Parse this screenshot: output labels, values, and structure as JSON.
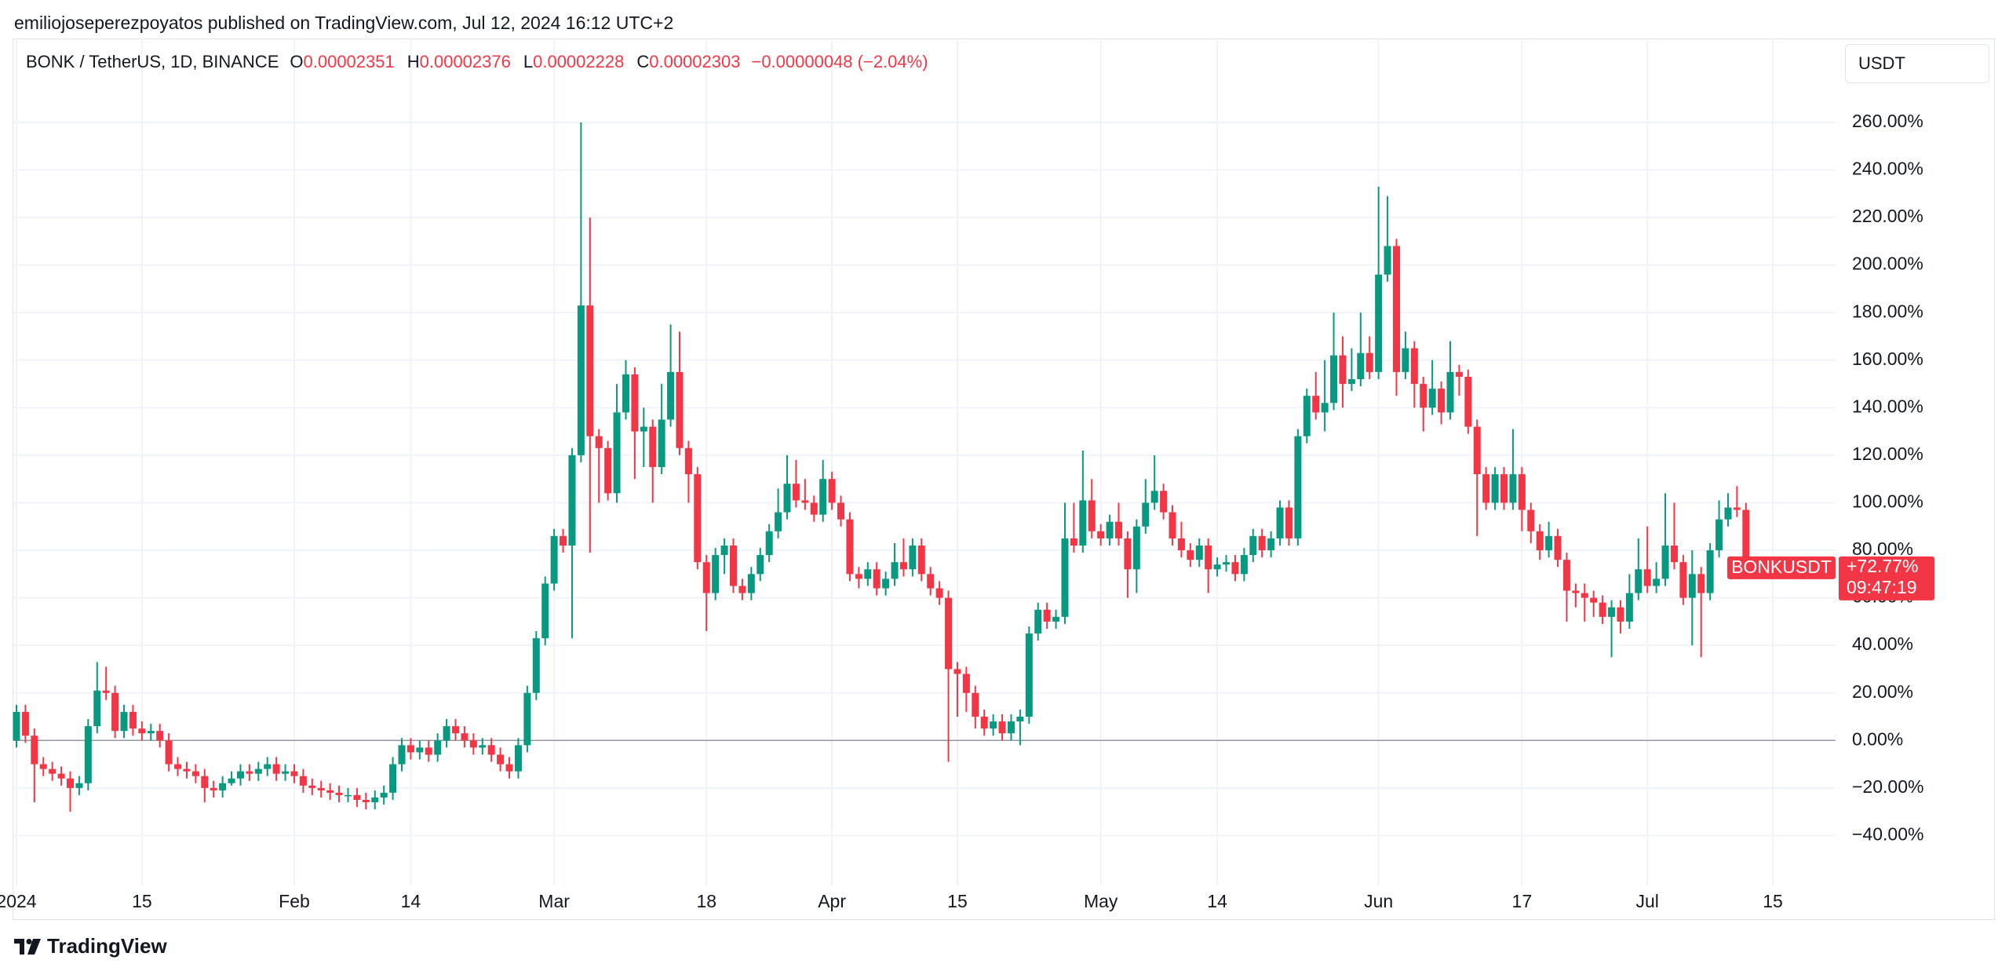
{
  "header": {
    "publisher": "emiliojoseperezpoyatos published on TradingView.com, Jul 12, 2024 16:12 UTC+2",
    "brand": "TradingView"
  },
  "chart_data": {
    "type": "candlestick",
    "symbol": "BONK / TetherUS, 1D, BINANCE",
    "ohlc_legend": [
      {
        "label": "O",
        "value": 2.351e-05
      },
      {
        "label": "H",
        "value": 2.376e-05
      },
      {
        "label": "L",
        "value": 2.228e-05
      },
      {
        "label": "C",
        "value": 2.303e-05
      }
    ],
    "change": "−0.00000048 (−2.04%)",
    "currency": "USDT",
    "up_color": "#089981",
    "down_color": "#f23645",
    "grid": true,
    "x": [
      "2024-01-01",
      "2024-01-02",
      "2024-01-03",
      "2024-01-04",
      "2024-01-05",
      "2024-01-06",
      "2024-01-07",
      "2024-01-08",
      "2024-01-09",
      "2024-01-10",
      "2024-01-11",
      "2024-01-12",
      "2024-01-13",
      "2024-01-14",
      "2024-01-15",
      "2024-01-16",
      "2024-01-17",
      "2024-01-18",
      "2024-01-19",
      "2024-01-20",
      "2024-01-21",
      "2024-01-22",
      "2024-01-23",
      "2024-01-24",
      "2024-01-25",
      "2024-01-26",
      "2024-01-27",
      "2024-01-28",
      "2024-01-29",
      "2024-01-30",
      "2024-01-31",
      "2024-02-01",
      "2024-02-02",
      "2024-02-03",
      "2024-02-04",
      "2024-02-05",
      "2024-02-06",
      "2024-02-07",
      "2024-02-08",
      "2024-02-09",
      "2024-02-10",
      "2024-02-11",
      "2024-02-12",
      "2024-02-13",
      "2024-02-14",
      "2024-02-15",
      "2024-02-16",
      "2024-02-17",
      "2024-02-18",
      "2024-02-19",
      "2024-02-20",
      "2024-02-21",
      "2024-02-22",
      "2024-02-23",
      "2024-02-24",
      "2024-02-25",
      "2024-02-26",
      "2024-02-27",
      "2024-02-28",
      "2024-02-29",
      "2024-03-01",
      "2024-03-02",
      "2024-03-03",
      "2024-03-04",
      "2024-03-05",
      "2024-03-06",
      "2024-03-07",
      "2024-03-08",
      "2024-03-09",
      "2024-03-10",
      "2024-03-11",
      "2024-03-12",
      "2024-03-13",
      "2024-03-14",
      "2024-03-15",
      "2024-03-16",
      "2024-03-17",
      "2024-03-18",
      "2024-03-19",
      "2024-03-20",
      "2024-03-21",
      "2024-03-22",
      "2024-03-23",
      "2024-03-24",
      "2024-03-25",
      "2024-03-26",
      "2024-03-27",
      "2024-03-28",
      "2024-03-29",
      "2024-03-30",
      "2024-03-31",
      "2024-04-01",
      "2024-04-02",
      "2024-04-03",
      "2024-04-04",
      "2024-04-05",
      "2024-04-06",
      "2024-04-07",
      "2024-04-08",
      "2024-04-09",
      "2024-04-10",
      "2024-04-11",
      "2024-04-12",
      "2024-04-13",
      "2024-04-14",
      "2024-04-15",
      "2024-04-16",
      "2024-04-17",
      "2024-04-18",
      "2024-04-19",
      "2024-04-20",
      "2024-04-21",
      "2024-04-22",
      "2024-04-23",
      "2024-04-24",
      "2024-04-25",
      "2024-04-26",
      "2024-04-27",
      "2024-04-28",
      "2024-04-29",
      "2024-04-30",
      "2024-05-01",
      "2024-05-02",
      "2024-05-03",
      "2024-05-04",
      "2024-05-05",
      "2024-05-06",
      "2024-05-07",
      "2024-05-08",
      "2024-05-09",
      "2024-05-10",
      "2024-05-11",
      "2024-05-12",
      "2024-05-13",
      "2024-05-14",
      "2024-05-15",
      "2024-05-16",
      "2024-05-17",
      "2024-05-18",
      "2024-05-19",
      "2024-05-20",
      "2024-05-21",
      "2024-05-22",
      "2024-05-23",
      "2024-05-24",
      "2024-05-25",
      "2024-05-26",
      "2024-05-27",
      "2024-05-28",
      "2024-05-29",
      "2024-05-30",
      "2024-05-31",
      "2024-06-01",
      "2024-06-02",
      "2024-06-03",
      "2024-06-04",
      "2024-06-05",
      "2024-06-06",
      "2024-06-07",
      "2024-06-08",
      "2024-06-09",
      "2024-06-10",
      "2024-06-11",
      "2024-06-12",
      "2024-06-13",
      "2024-06-14",
      "2024-06-15",
      "2024-06-16",
      "2024-06-17",
      "2024-06-18",
      "2024-06-19",
      "2024-06-20",
      "2024-06-21",
      "2024-06-22",
      "2024-06-23",
      "2024-06-24",
      "2024-06-25",
      "2024-06-26",
      "2024-06-27",
      "2024-06-28",
      "2024-06-29",
      "2024-06-30",
      "2024-07-01",
      "2024-07-02",
      "2024-07-03",
      "2024-07-04",
      "2024-07-05",
      "2024-07-06",
      "2024-07-07",
      "2024-07-08",
      "2024-07-09",
      "2024-07-10",
      "2024-07-11",
      "2024-07-12"
    ],
    "open": [
      0,
      12,
      2,
      -10,
      -12,
      -14,
      -16,
      -20,
      -18,
      6,
      21,
      20,
      4,
      12,
      5,
      3,
      4,
      0,
      -10,
      -12,
      -13,
      -15,
      -20,
      -21,
      -18,
      -16,
      -13,
      -14,
      -12,
      -10,
      -14,
      -13,
      -15,
      -19,
      -20,
      -21,
      -22,
      -23,
      -23,
      -25,
      -26,
      -24,
      -22,
      -10,
      -2,
      -5,
      -3,
      -6,
      0,
      6,
      3,
      0,
      -3,
      -2,
      -6,
      -10,
      -13,
      -2,
      20,
      43,
      66,
      86,
      82,
      120,
      183,
      128,
      123,
      104,
      138,
      154,
      130,
      132,
      115,
      135,
      155,
      123,
      112,
      75,
      62,
      78,
      82,
      65,
      62,
      70,
      78,
      88,
      96,
      108,
      101,
      100,
      95,
      110,
      100,
      93,
      70,
      68,
      72,
      64,
      68,
      75,
      72,
      82,
      70,
      64,
      60,
      30,
      28,
      20,
      10,
      5,
      8,
      3,
      8,
      10,
      45,
      55,
      50,
      52,
      85,
      82,
      101,
      88,
      85,
      92,
      85,
      72,
      90,
      100,
      105,
      96,
      85,
      80,
      76,
      82,
      72,
      74,
      75,
      70,
      78,
      86,
      80,
      85,
      98,
      85,
      128,
      145,
      138,
      142,
      162,
      150,
      152,
      163,
      155,
      196,
      208,
      155,
      165,
      150,
      140,
      148,
      138,
      155,
      153,
      132,
      112,
      100,
      112,
      100,
      112,
      97,
      88,
      80,
      86,
      76,
      63,
      62,
      60,
      58,
      52,
      56,
      50,
      62,
      72,
      65,
      68,
      82,
      75,
      60,
      70,
      62,
      80,
      93,
      98,
      97
    ],
    "high": [
      15,
      15,
      5,
      -7,
      -9,
      -11,
      -13,
      -15,
      9,
      33,
      31,
      23,
      15,
      15,
      8,
      7,
      7,
      3,
      -7,
      -9,
      -10,
      -12,
      -17,
      -15,
      -13,
      -10,
      -10,
      -9,
      -7,
      -7,
      -10,
      -10,
      -12,
      -16,
      -17,
      -18,
      -19,
      -20,
      -20,
      -22,
      -21,
      -19,
      -7,
      1,
      1,
      0,
      0,
      3,
      9,
      9,
      6,
      3,
      1,
      1,
      -3,
      -7,
      1,
      23,
      46,
      69,
      89,
      89,
      123,
      260,
      220,
      131,
      126,
      150,
      160,
      157,
      140,
      135,
      150,
      175,
      172,
      126,
      115,
      78,
      81,
      85,
      85,
      68,
      73,
      81,
      91,
      106,
      120,
      118,
      110,
      103,
      118,
      113,
      103,
      96,
      73,
      75,
      75,
      71,
      83,
      85,
      85,
      85,
      73,
      67,
      63,
      33,
      31,
      23,
      13,
      11,
      11,
      11,
      13,
      48,
      58,
      58,
      55,
      100,
      100,
      122,
      110,
      91,
      95,
      100,
      88,
      93,
      110,
      120,
      108,
      99,
      92,
      83,
      85,
      85,
      77,
      78,
      78,
      81,
      89,
      89,
      88,
      101,
      101,
      131,
      148,
      155,
      160,
      180,
      170,
      165,
      180,
      170,
      233,
      229,
      211,
      172,
      168,
      153,
      160,
      151,
      168,
      158,
      156,
      135,
      115,
      115,
      115,
      131,
      115,
      100,
      91,
      92,
      89,
      79,
      66,
      66,
      63,
      61,
      59,
      59,
      70,
      85,
      90,
      75,
      104,
      100,
      78,
      80,
      73,
      83,
      101,
      104,
      107,
      100
    ],
    "low": [
      -3,
      -1,
      -26,
      -15,
      -17,
      -19,
      -30,
      -23,
      -21,
      3,
      17,
      1,
      1,
      2,
      0,
      0,
      -3,
      -13,
      -15,
      -16,
      -18,
      -26,
      -24,
      -24,
      -19,
      -19,
      -17,
      -17,
      -15,
      -17,
      -17,
      -18,
      -22,
      -23,
      -24,
      -25,
      -26,
      -26,
      -28,
      -29,
      -29,
      -27,
      -25,
      -13,
      -8,
      -8,
      -9,
      -9,
      -3,
      0,
      -3,
      -6,
      -6,
      -9,
      -13,
      -16,
      -16,
      -5,
      17,
      40,
      63,
      79,
      43,
      117,
      79,
      100,
      101,
      100,
      135,
      110,
      115,
      100,
      112,
      132,
      120,
      100,
      72,
      46,
      59,
      70,
      62,
      59,
      59,
      67,
      75,
      85,
      93,
      98,
      97,
      92,
      92,
      97,
      90,
      67,
      64,
      65,
      61,
      61,
      65,
      69,
      69,
      67,
      61,
      57,
      -9,
      10,
      12,
      5,
      2,
      2,
      0,
      0,
      -2,
      7,
      42,
      47,
      47,
      49,
      79,
      79,
      85,
      82,
      82,
      82,
      60,
      62,
      87,
      97,
      93,
      82,
      77,
      73,
      73,
      62,
      69,
      71,
      67,
      67,
      75,
      77,
      77,
      82,
      82,
      82,
      125,
      135,
      130,
      139,
      140,
      147,
      149,
      152,
      152,
      193,
      145,
      152,
      140,
      130,
      137,
      133,
      135,
      145,
      129,
      86,
      97,
      97,
      97,
      97,
      88,
      83,
      76,
      77,
      73,
      50,
      56,
      50,
      52,
      49,
      35,
      45,
      47,
      59,
      62,
      62,
      65,
      72,
      57,
      40,
      35,
      59,
      77,
      90,
      94,
      70
    ],
    "close": [
      12,
      2,
      -10,
      -12,
      -14,
      -16,
      -20,
      -18,
      6,
      21,
      20,
      4,
      12,
      5,
      3,
      4,
      0,
      -10,
      -12,
      -13,
      -15,
      -20,
      -21,
      -18,
      -16,
      -13,
      -14,
      -12,
      -10,
      -14,
      -13,
      -15,
      -19,
      -20,
      -21,
      -22,
      -23,
      -23,
      -25,
      -26,
      -24,
      -22,
      -10,
      -2,
      -5,
      -3,
      -6,
      0,
      6,
      3,
      0,
      -3,
      -2,
      -6,
      -10,
      -13,
      -2,
      20,
      43,
      66,
      86,
      82,
      120,
      183,
      128,
      123,
      104,
      138,
      154,
      130,
      132,
      115,
      135,
      155,
      123,
      112,
      75,
      62,
      78,
      82,
      65,
      62,
      70,
      78,
      88,
      96,
      108,
      101,
      100,
      95,
      110,
      100,
      93,
      70,
      68,
      72,
      64,
      68,
      75,
      72,
      82,
      70,
      64,
      60,
      30,
      28,
      20,
      10,
      5,
      8,
      3,
      8,
      10,
      45,
      55,
      50,
      52,
      85,
      82,
      101,
      88,
      85,
      92,
      85,
      72,
      90,
      100,
      105,
      96,
      85,
      80,
      76,
      82,
      72,
      74,
      75,
      70,
      78,
      86,
      80,
      85,
      98,
      85,
      128,
      145,
      138,
      142,
      162,
      150,
      152,
      163,
      155,
      196,
      208,
      155,
      165,
      150,
      140,
      148,
      138,
      155,
      153,
      132,
      112,
      100,
      112,
      100,
      112,
      97,
      88,
      80,
      86,
      76,
      63,
      62,
      60,
      58,
      52,
      56,
      50,
      62,
      72,
      65,
      68,
      82,
      75,
      60,
      70,
      62,
      80,
      93,
      98,
      97,
      72.77
    ],
    "ylim": [
      -61,
      295
    ],
    "yticks": [
      {
        "value": -40,
        "label": "−40.00%"
      },
      {
        "value": -20,
        "label": "−20.00%"
      },
      {
        "value": 0,
        "label": "0.00%"
      },
      {
        "value": 20,
        "label": "20.00%"
      },
      {
        "value": 40,
        "label": "40.00%"
      },
      {
        "value": 60,
        "label": "60.00%"
      },
      {
        "value": 80,
        "label": "80.00%"
      },
      {
        "value": 100,
        "label": "100.00%"
      },
      {
        "value": 120,
        "label": "120.00%"
      },
      {
        "value": 140,
        "label": "140.00%"
      },
      {
        "value": 160,
        "label": "160.00%"
      },
      {
        "value": 180,
        "label": "180.00%"
      },
      {
        "value": 200,
        "label": "200.00%"
      },
      {
        "value": 220,
        "label": "220.00%"
      },
      {
        "value": 240,
        "label": "240.00%"
      },
      {
        "value": 260,
        "label": "260.00%"
      }
    ],
    "xlim": [
      "2024-01-01",
      "2024-07-22"
    ],
    "xticks": [
      {
        "value": "2024-01-01",
        "label": "2024"
      },
      {
        "value": "2024-01-15",
        "label": "15"
      },
      {
        "value": "2024-02-01",
        "label": "Feb"
      },
      {
        "value": "2024-02-14",
        "label": "14"
      },
      {
        "value": "2024-03-01",
        "label": "Mar"
      },
      {
        "value": "2024-03-18",
        "label": "18"
      },
      {
        "value": "2024-04-01",
        "label": "Apr"
      },
      {
        "value": "2024-04-15",
        "label": "15"
      },
      {
        "value": "2024-05-01",
        "label": "May"
      },
      {
        "value": "2024-05-14",
        "label": "14"
      },
      {
        "value": "2024-06-01",
        "label": "Jun"
      },
      {
        "value": "2024-06-17",
        "label": "17"
      },
      {
        "value": "2024-07-01",
        "label": "Jul"
      },
      {
        "value": "2024-07-15",
        "label": "15"
      }
    ],
    "last_price": {
      "symbol": "BONKUSDT",
      "value": 72.77,
      "label": "+72.77%",
      "countdown": "09:47:19"
    }
  }
}
